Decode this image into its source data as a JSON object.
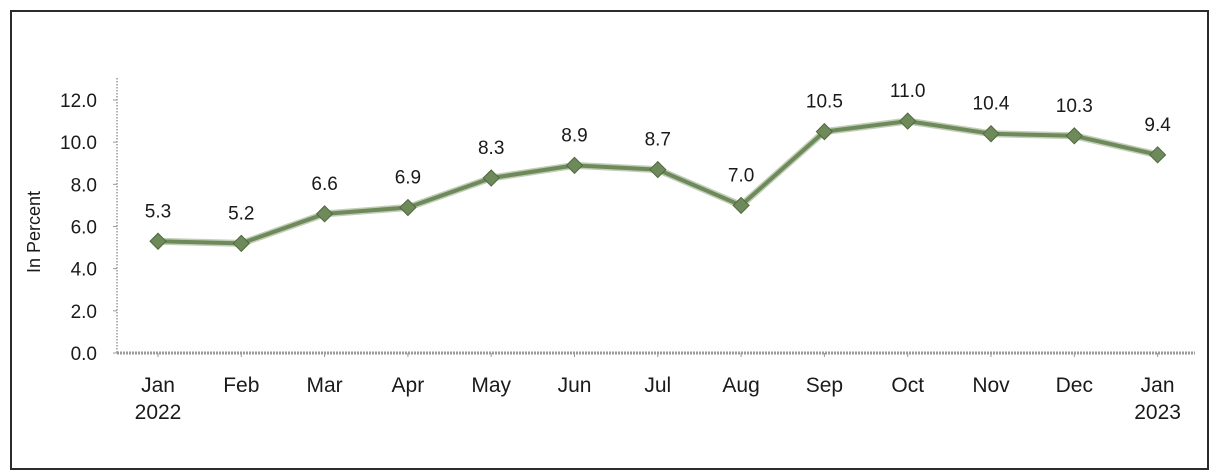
{
  "chart_data": {
    "type": "line",
    "categories": [
      "Jan 2022",
      "Feb",
      "Mar",
      "Apr",
      "May",
      "Jun",
      "Jul",
      "Aug",
      "Sep",
      "Oct",
      "Nov",
      "Dec",
      "Jan 2023"
    ],
    "category_lines": [
      [
        "Jan",
        "2022"
      ],
      [
        "Feb"
      ],
      [
        "Mar"
      ],
      [
        "Apr"
      ],
      [
        "May"
      ],
      [
        "Jun"
      ],
      [
        "Jul"
      ],
      [
        "Aug"
      ],
      [
        "Sep"
      ],
      [
        "Oct"
      ],
      [
        "Nov"
      ],
      [
        "Dec"
      ],
      [
        "Jan",
        "2023"
      ]
    ],
    "series": [
      {
        "values": [
          5.3,
          5.2,
          6.6,
          6.9,
          8.3,
          8.9,
          8.7,
          7.0,
          10.5,
          11.0,
          10.4,
          10.3,
          9.4
        ],
        "color": "#6e8a5a",
        "marker": "diamond",
        "data_labels": [
          "5.3",
          "5.2",
          "6.6",
          "6.9",
          "8.3",
          "8.9",
          "8.7",
          "7.0",
          "10.5",
          "11.0",
          "10.4",
          "10.3",
          "9.4"
        ]
      }
    ],
    "ylabel": "In Percent",
    "xlabel": "",
    "title": "",
    "ylim": [
      0,
      12
    ],
    "yticks": [
      "0.0",
      "2.0",
      "4.0",
      "6.0",
      "8.0",
      "10.0",
      "12.0"
    ],
    "ytick_values": [
      0,
      2,
      4,
      6,
      8,
      10,
      12
    ],
    "grid": false,
    "legend": "none"
  },
  "colors": {
    "line": "#6e8a5a",
    "line_shadow": "#8fa57d",
    "marker": "#6e8a5a",
    "axis": "#9a9a9a",
    "text": "#1a1a1a",
    "frame": "#2b2b2b"
  }
}
